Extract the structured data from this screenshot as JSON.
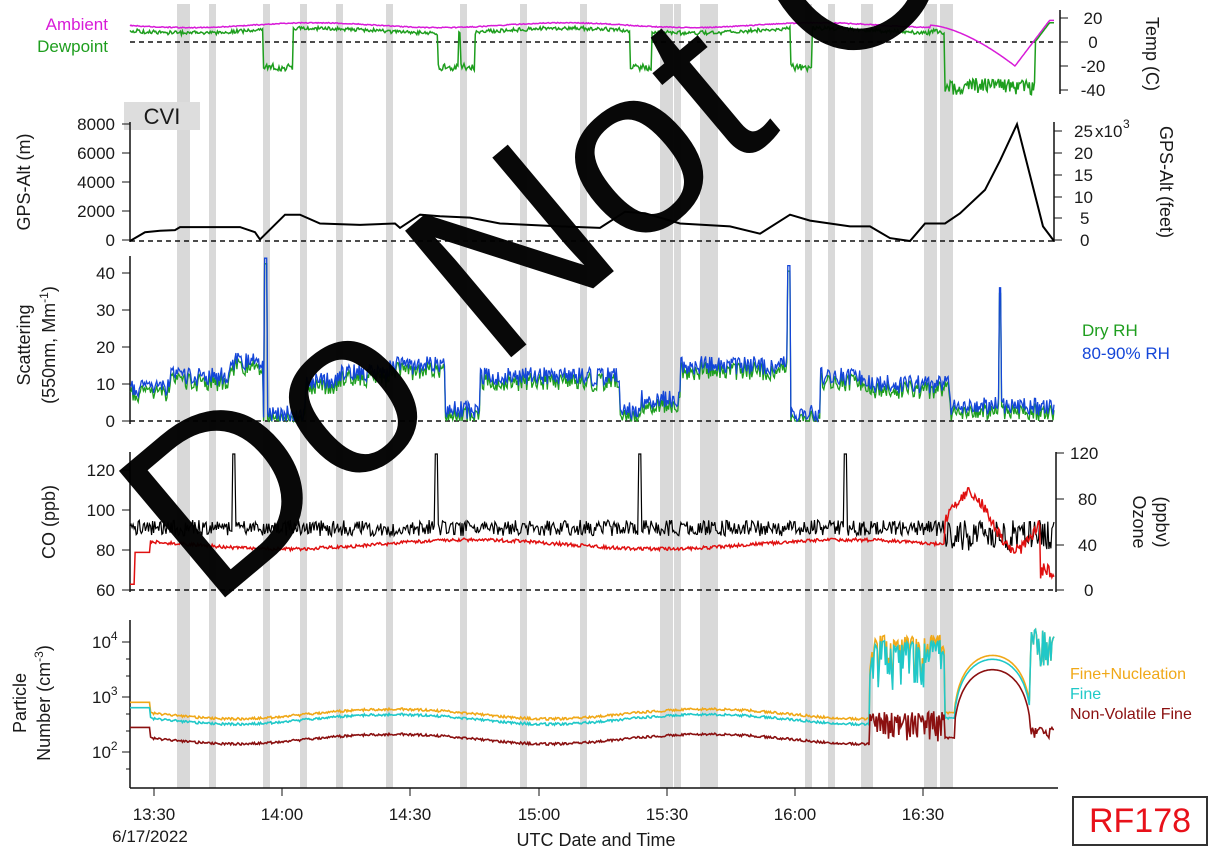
{
  "flight_id": "RF178",
  "watermark_text": "Do Not Cite",
  "chart_data": {
    "type": "line",
    "title": "",
    "xlabel": "UTC Date and Time",
    "date_label": "6/17/2022",
    "x_ticks": [
      "13:30",
      "14:00",
      "14:30",
      "15:00",
      "15:30",
      "16:00",
      "16:30"
    ],
    "x_range": [
      "13:22",
      "16:53"
    ],
    "cloud_periods_shaded": true,
    "panels": [
      {
        "id": "temperature",
        "ylabel": "Temp (C)",
        "ylim": [
          -45,
          25
        ],
        "yticks": [
          "20",
          "0",
          "-20",
          "-40"
        ],
        "axis_side": "right",
        "annotation": "CVI",
        "series": [
          {
            "name": "Ambient",
            "color": "#d81bd8"
          },
          {
            "name": "Dewpoint",
            "color": "#1e9e1e"
          }
        ]
      },
      {
        "id": "altitude",
        "ylabel_left": "GPS-Alt (m)",
        "ylabel_right": "GPS-Alt (feet)",
        "ylim": [
          0,
          8000
        ],
        "yticks_left": [
          "8000",
          "6000",
          "4000",
          "2000",
          "0"
        ],
        "yticks_right": [
          "25",
          "20",
          "15",
          "10",
          "5",
          "0"
        ],
        "right_multiplier": "x10",
        "right_exponent": "3",
        "series": [
          {
            "name": "GPS-Alt",
            "color": "#000000"
          }
        ]
      },
      {
        "id": "scattering",
        "ylabel_line1": "Scattering",
        "ylabel_line2": "(550nm, Mm",
        "ylabel_sup": "-1",
        "ylabel_close": ")",
        "ylim": [
          -2,
          45
        ],
        "yticks": [
          "40",
          "30",
          "20",
          "10",
          "0"
        ],
        "series": [
          {
            "name": "Dry RH",
            "color": "#1e9e1e"
          },
          {
            "name": "80-90% RH",
            "color": "#1446d8"
          }
        ]
      },
      {
        "id": "co_ozone",
        "ylabel_left": "CO (ppb)",
        "ylabel_right_line1": "Ozone",
        "ylabel_right_line2": "(ppbv)",
        "ylim_left": [
          60,
          130
        ],
        "ylim_right": [
          0,
          120
        ],
        "yticks_left": [
          "120",
          "100",
          "80",
          "60"
        ],
        "yticks_right": [
          "120",
          "80",
          "40",
          "0"
        ],
        "series": [
          {
            "name": "CO",
            "color": "#000000"
          },
          {
            "name": "Ozone",
            "color": "#e01010"
          }
        ]
      },
      {
        "id": "particles",
        "ylabel_line1": "Particle",
        "ylabel_line2": "Number (cm",
        "ylabel_sup": "-3",
        "ylabel_close": ")",
        "yscale": "log",
        "ylim": [
          40,
          25000
        ],
        "yticks": [
          {
            "base": "10",
            "exp": "4"
          },
          {
            "base": "10",
            "exp": "3"
          },
          {
            "base": "10",
            "exp": "2"
          }
        ],
        "series": [
          {
            "name": "Fine+Nucleation",
            "color": "#f0a818"
          },
          {
            "name": "Fine",
            "color": "#20c8c8"
          },
          {
            "name": "Non-Volatile Fine",
            "color": "#8b1010"
          }
        ]
      }
    ]
  }
}
